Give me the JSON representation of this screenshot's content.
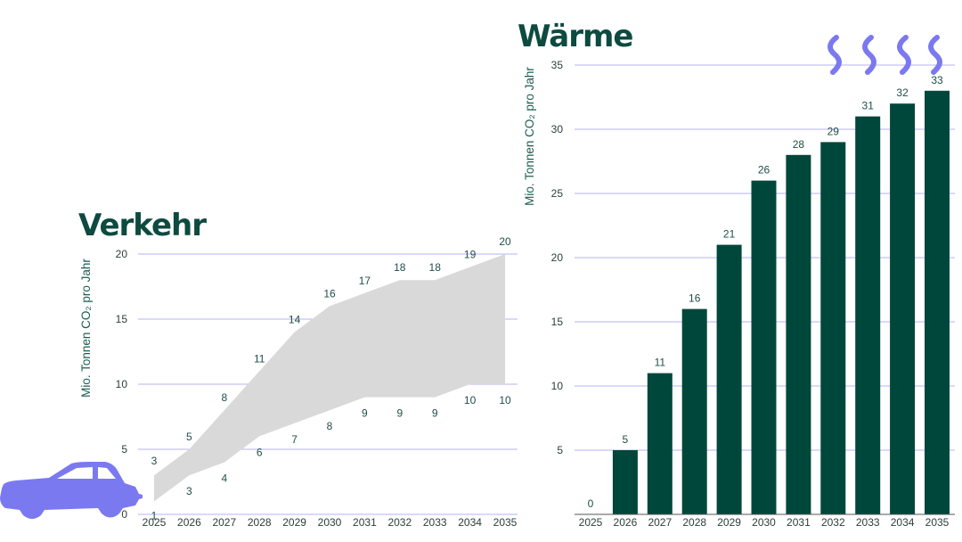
{
  "chart_data": [
    {
      "type": "area",
      "title": "Verkehr",
      "ylabel": "Mio. Tonnen CO₂ pro Jahr",
      "x": [
        "2025",
        "2026",
        "2027",
        "2028",
        "2029",
        "2030",
        "2031",
        "2032",
        "2033",
        "2034",
        "2035"
      ],
      "series": [
        {
          "values": [
            3,
            5,
            8,
            11,
            14,
            16,
            17,
            18,
            18,
            19,
            20
          ]
        },
        {
          "values": [
            1,
            3,
            4,
            6,
            7,
            8,
            9,
            9,
            9,
            10,
            10
          ]
        }
      ],
      "yticks": [
        "0",
        "5",
        "10",
        "15",
        "20"
      ],
      "ylim": [
        0,
        20
      ],
      "grid": true
    },
    {
      "type": "bar",
      "title": "Wärme",
      "ylabel": "Mio. Tonnen CO₂ pro Jahr",
      "categories": [
        "2025",
        "2026",
        "2027",
        "2028",
        "2029",
        "2030",
        "2031",
        "2032",
        "2033",
        "2034",
        "2035"
      ],
      "values": [
        0,
        5,
        11,
        16,
        21,
        26,
        28,
        29,
        31,
        32,
        33
      ],
      "value_labels": [
        "0",
        "5",
        "11",
        "16",
        "21",
        "26",
        "28",
        "29",
        "31",
        "32",
        "33"
      ],
      "yticks": [
        "5",
        "10",
        "15",
        "20",
        "25",
        "30",
        "35"
      ],
      "ylim": [
        0,
        35
      ],
      "grid": true
    }
  ],
  "icons": {
    "car": "car-icon",
    "heat": "heat-wave-icon"
  },
  "colors": {
    "title": "#0d4a40",
    "bar": "#00473b",
    "area": "#d9d9d9",
    "grid": "#b6b3f0",
    "icon": "#7b79f0"
  }
}
